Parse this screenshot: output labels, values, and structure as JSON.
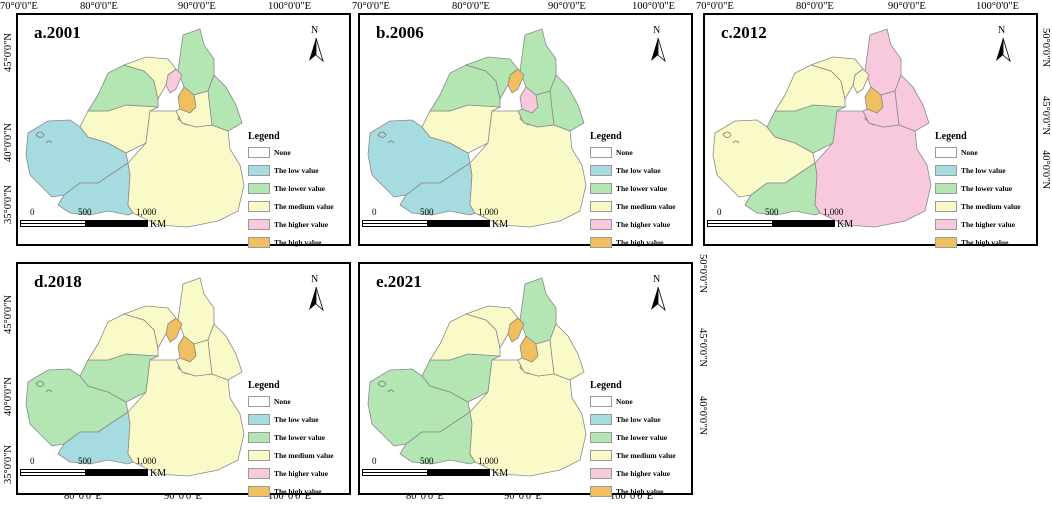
{
  "panels": [
    {
      "id": "a",
      "title": "a.2001",
      "colors": {
        "west": "low",
        "sw": "low",
        "sc": "medium",
        "central": "medium",
        "n": "lower",
        "nw": "lower",
        "ne": "lower",
        "urumqi": "high",
        "east": "medium",
        "karamay": "higher",
        "small": "medium"
      }
    },
    {
      "id": "b",
      "title": "b.2006",
      "colors": {
        "west": "low",
        "sw": "low",
        "sc": "medium",
        "central": "medium",
        "n": "lower",
        "nw": "lower",
        "ne": "lower",
        "urumqi": "higher",
        "east": "lower",
        "karamay": "high",
        "small": "lower"
      }
    },
    {
      "id": "c",
      "title": "c.2012",
      "colors": {
        "west": "medium",
        "sw": "lower",
        "sc": "lower",
        "central": "higher",
        "n": "higher",
        "nw": "medium",
        "ne": "higher",
        "urumqi": "high",
        "east": "higher",
        "karamay": "medium",
        "small": "medium"
      }
    },
    {
      "id": "d",
      "title": "d.2018",
      "colors": {
        "west": "lower",
        "sw": "low",
        "sc": "lower",
        "central": "medium",
        "n": "medium",
        "nw": "medium",
        "ne": "medium",
        "urumqi": "high",
        "east": "medium",
        "karamay": "high",
        "small": "medium"
      }
    },
    {
      "id": "e",
      "title": "e.2021",
      "colors": {
        "west": "lower",
        "sw": "lower",
        "sc": "lower",
        "central": "medium",
        "n": "lower",
        "nw": "medium",
        "ne": "medium",
        "urumqi": "high",
        "east": "medium",
        "karamay": "high",
        "small": "medium"
      }
    }
  ],
  "legend": {
    "title": "Legend",
    "items": [
      {
        "key": "none",
        "label": "None",
        "color": "#ffffff"
      },
      {
        "key": "low",
        "label": "The low value",
        "color": "#a6dbe0"
      },
      {
        "key": "lower",
        "label": "The lower value",
        "color": "#b3e6b3"
      },
      {
        "key": "medium",
        "label": "The medium value",
        "color": "#fafac8"
      },
      {
        "key": "higher",
        "label": "The higher value",
        "color": "#f8c8dc"
      },
      {
        "key": "high",
        "label": "The high value",
        "color": "#f0c060"
      }
    ]
  },
  "scale": {
    "t0": "0",
    "t1": "500",
    "t2": "1,000",
    "unit": "KM"
  },
  "north_label": "N",
  "coords": {
    "top_row_top": [
      "70°0'0\"E",
      "80°0'0\"E",
      "90°0'0\"E",
      "100°0'0\"E"
    ],
    "bottom_row_bottom": [
      "80°0'0\"E",
      "90°0'0\"E",
      "100°0'0\"E"
    ],
    "panel_a_left": [
      "45°0'0\"N",
      "40°0'0\"N",
      "35°0'0\"N"
    ],
    "panel_c_right": [
      "50°0'0\"N",
      "45°0'0\"N",
      "40°0'0\"N"
    ],
    "panel_d_left": [
      "45°0'0\"N",
      "40°0'0\"N",
      "35°0'0\"N"
    ],
    "panel_e_right": [
      "50°0'0\"N",
      "45°0'0\"N",
      "40°0'0\"N"
    ]
  }
}
